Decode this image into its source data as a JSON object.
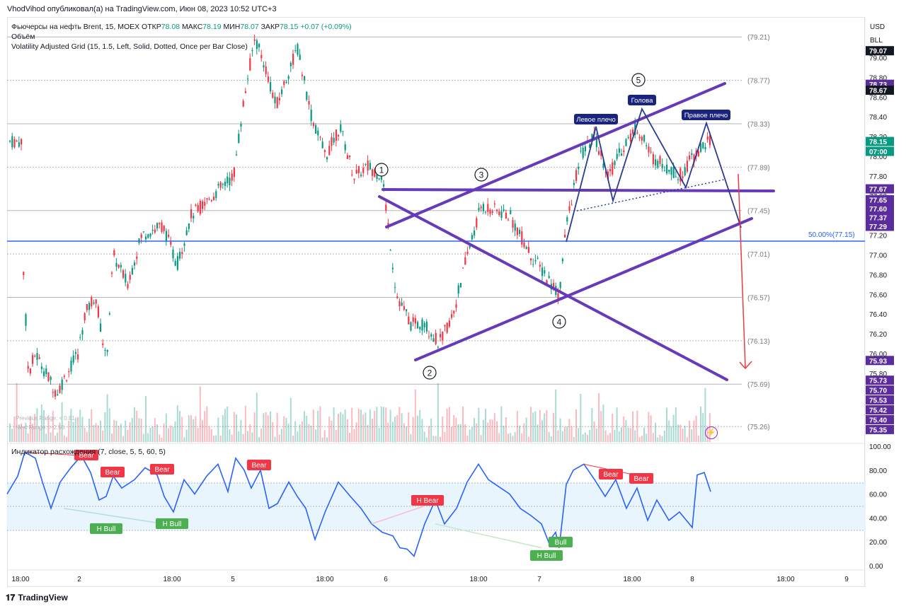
{
  "header": {
    "publisher_text": "VhodVihod опубликовал(а) на TradingView.com, Июн 08, 2023 10:52 UTC+3"
  },
  "legend": {
    "symbol": "Фьючерсы на нефть Brent, 15, MOEX",
    "open_label": "ОТКР",
    "open": "78.08",
    "high_label": "МАКС",
    "high": "78.19",
    "low_label": "МИН",
    "low": "78.07",
    "close_label": "ЗАКР",
    "close": "78.15",
    "change": "+0.07 (+0.09%)",
    "volume": "Объём",
    "grid_indicator": "Volatility Adjusted Grid (15, 1.5, Left, Solid, Dotted, Once per Bar Close)"
  },
  "range_info": {
    "previous": "Previous Range:    < 0.81",
    "next": "Next Range:         > 2.56"
  },
  "divergence": {
    "title": "Индикатор расхождения (7, close, 5, 5, 60, 5)"
  },
  "price_axis": {
    "currency": "USD",
    "unit": "BLL",
    "ticks": [
      "79.00",
      "78.80",
      "78.60",
      "78.40",
      "78.20",
      "78.00",
      "77.80",
      "77.60",
      "77.40",
      "77.20",
      "77.00",
      "76.80",
      "76.60",
      "76.40",
      "76.20",
      "76.00",
      "75.80"
    ],
    "grid_labels": [
      "(79.21)",
      "(78.77)",
      "(78.33)",
      "(77.89)",
      "(77.45)",
      "(77.01)",
      "(76.57)",
      "(76.13)",
      "(75.69)",
      "(75.26)"
    ],
    "badges": [
      {
        "text": "79.07",
        "color": "#131722",
        "price": 79.07
      },
      {
        "text": "78.73",
        "color": "#5b2c9e",
        "price": 78.73
      },
      {
        "text": "78.67",
        "color": "#131722",
        "price": 78.67
      },
      {
        "text": "78.15",
        "color": "#089981",
        "price": 78.15
      },
      {
        "text": "07:00",
        "color": "#089981",
        "price": 78.05
      },
      {
        "text": "77.67",
        "color": "#5b2c9e",
        "price": 77.67
      },
      {
        "text": "77.65",
        "color": "#5b2c9e",
        "price": 77.56
      },
      {
        "text": "77.60",
        "color": "#5b2c9e",
        "price": 77.47
      },
      {
        "text": "77.37",
        "color": "#5b2c9e",
        "price": 77.38
      },
      {
        "text": "77.29",
        "color": "#5b2c9e",
        "price": 77.29
      },
      {
        "text": "75.93",
        "color": "#5b2c9e",
        "price": 75.93
      },
      {
        "text": "75.73",
        "color": "#5b2c9e",
        "price": 75.73
      },
      {
        "text": "75.70",
        "color": "#5b2c9e",
        "price": 75.63
      },
      {
        "text": "75.53",
        "color": "#5b2c9e",
        "price": 75.53
      },
      {
        "text": "75.42",
        "color": "#5b2c9e",
        "price": 75.43
      },
      {
        "text": "75.40",
        "color": "#5b2c9e",
        "price": 75.33
      },
      {
        "text": "75.35",
        "color": "#5b2c9e",
        "price": 75.23
      }
    ],
    "fib_label": "50.00%(77.15)"
  },
  "osc_axis": {
    "ticks": [
      "100.00",
      "80.00",
      "60.00",
      "40.00",
      "20.00",
      "0.00"
    ]
  },
  "time_axis": {
    "labels": [
      "18:00",
      "2",
      "18:00",
      "5",
      "18:00",
      "6",
      "18:00",
      "7",
      "18:00",
      "8",
      "18:00",
      "9"
    ]
  },
  "annotations": {
    "wave_labels": [
      "1",
      "2",
      "3",
      "4",
      "5"
    ],
    "left_shoulder": "Левое плечо",
    "head": "Голова",
    "right_shoulder": "Правое плечо"
  },
  "signals": {
    "bear": "Bear",
    "h_bear": "H Bear",
    "h_bull": "H Bull",
    "bull": "Bull"
  },
  "footer": {
    "brand": "TradingView"
  },
  "colors": {
    "up": "#089981",
    "down": "#f23645",
    "annot": "#673ab7",
    "fib": "#2962ff",
    "osc": "#2962ff"
  }
}
